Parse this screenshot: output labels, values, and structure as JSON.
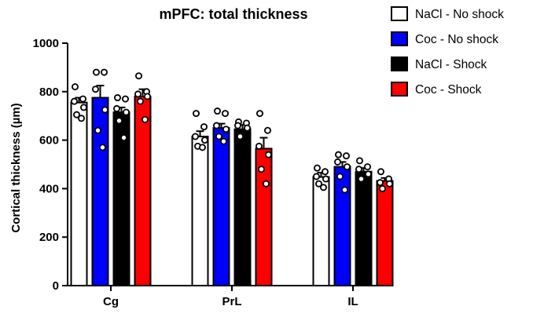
{
  "chart_data": {
    "type": "bar",
    "title": "mPFC: total thickness",
    "xlabel": "",
    "ylabel": "Cortical thickness (µm)",
    "ylim": [
      0,
      1000
    ],
    "yticks": [
      0,
      200,
      400,
      600,
      800,
      1000
    ],
    "categories": [
      "Cg",
      "PrL",
      "IL"
    ],
    "legend_position": "top-right",
    "grid": false,
    "series": [
      {
        "name": "NaCl - No shock",
        "color": "#ffffff",
        "values": [
          755,
          615,
          448
        ],
        "errors": [
          20,
          22,
          18
        ],
        "points": [
          [
            820,
            770,
            760,
            735,
            705,
            690
          ],
          [
            710,
            655,
            615,
            600,
            575,
            570
          ],
          [
            485,
            470,
            450,
            440,
            420,
            405
          ]
        ]
      },
      {
        "name": "Coc - No shock",
        "color": "#0000ff",
        "values": [
          775,
          650,
          490
        ],
        "errors": [
          50,
          18,
          20
        ],
        "points": [
          [
            880,
            880,
            810,
            725,
            640,
            570
          ],
          [
            720,
            710,
            660,
            645,
            615,
            595
          ],
          [
            540,
            535,
            510,
            490,
            450,
            395
          ]
        ]
      },
      {
        "name": "NaCl - Shock",
        "color": "#000000",
        "values": [
          715,
          645,
          470
        ],
        "errors": [
          20,
          18,
          15
        ],
        "points": [
          [
            775,
            770,
            730,
            715,
            680,
            610
          ],
          [
            675,
            670,
            660,
            650,
            615
          ],
          [
            515,
            490,
            480,
            460,
            440
          ]
        ]
      },
      {
        "name": "Coc - Shock",
        "color": "#ff0000",
        "values": [
          780,
          565,
          432
        ],
        "errors": [
          30,
          45,
          12
        ],
        "points": [
          [
            865,
            800,
            790,
            780,
            760,
            685
          ],
          [
            710,
            640,
            575,
            540,
            480,
            420
          ],
          [
            470,
            440,
            425,
            420,
            400
          ]
        ]
      }
    ]
  }
}
